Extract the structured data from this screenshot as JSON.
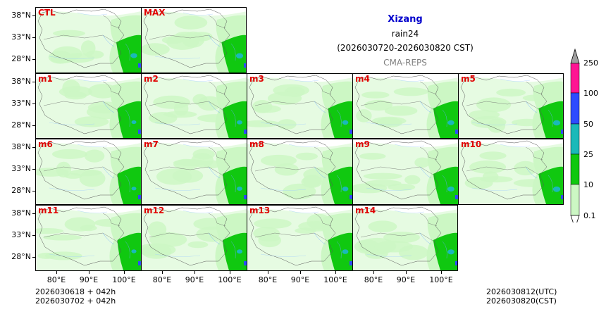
{
  "title": {
    "region": "Xizang",
    "variable": "rain24",
    "period": "(2026030720-2026030820 CST)",
    "model": "CMA-REPS",
    "region_color": "#0000cc",
    "model_color": "#808080"
  },
  "panels": [
    {
      "label": "CTL"
    },
    {
      "label": "MAX"
    },
    {
      "label": "m1"
    },
    {
      "label": "m2"
    },
    {
      "label": "m3"
    },
    {
      "label": "m4"
    },
    {
      "label": "m5"
    },
    {
      "label": "m6"
    },
    {
      "label": "m7"
    },
    {
      "label": "m8"
    },
    {
      "label": "m9"
    },
    {
      "label": "m10"
    },
    {
      "label": "m11"
    },
    {
      "label": "m12"
    },
    {
      "label": "m13"
    },
    {
      "label": "m14"
    }
  ],
  "axes": {
    "lat_ticks": [
      "38°N",
      "33°N",
      "28°N"
    ],
    "lon_ticks": [
      "80°E",
      "90°E",
      "100°E"
    ]
  },
  "colorbar": {
    "labels": [
      "250",
      "100",
      "50",
      "25",
      "10",
      "0.1"
    ],
    "colors": [
      "#ff1493",
      "#2e4bff",
      "#1ab9b9",
      "#10c810",
      "#ccf7c4"
    ],
    "over_color": "#a0a0a0"
  },
  "footer": {
    "init_utc_line": "2026030618  +  042h",
    "init_cst_line": "2026030702  +  042h",
    "valid_utc": "2026030812(UTC)",
    "valid_cst": "2026030820(CST)"
  }
}
